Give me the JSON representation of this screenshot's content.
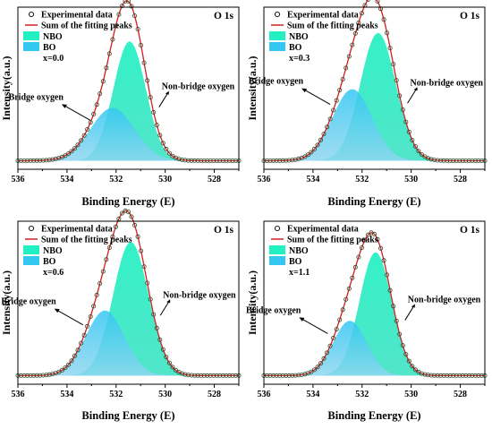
{
  "figure": {
    "legend_labels": {
      "experimental": "Experimental data",
      "fit_sum": "Sum of the fitting peaks",
      "nbo": "NBO",
      "bo": "BO"
    },
    "colors": {
      "nbo": "#22f0c2",
      "bo": "#33c7f2",
      "fit_line": "#d11f1f",
      "markers": "#2e4a2e"
    }
  },
  "chart_data": [
    {
      "type": "area",
      "title": "O 1s",
      "composition_label": "x=0.0",
      "xlabel": "Binding Energy (E)",
      "ylabel": "Intensity(a.u.)",
      "xlim": [
        536,
        527
      ],
      "x_reversed": true,
      "xticks": [
        "536",
        "534",
        "532",
        "530",
        "528"
      ],
      "annotations": [
        "Bridge oxygen",
        "Non-bridge oxygen"
      ],
      "baseline": 0.05,
      "peaks": [
        {
          "name": "NBO",
          "center": 531.45,
          "fwhm": 1.55,
          "height": 0.7
        },
        {
          "name": "BO",
          "center": 532.15,
          "fwhm": 2.1,
          "height": 0.31
        }
      ]
    },
    {
      "type": "area",
      "title": "O 1s",
      "composition_label": "x=0.3",
      "xlabel": "Binding Energy (E)",
      "ylabel": "Intensity(a.u.)",
      "xlim": [
        536,
        527
      ],
      "x_reversed": true,
      "xticks": [
        "536",
        "534",
        "532",
        "530",
        "528"
      ],
      "annotations": [
        "Bridge oxygen",
        "Non-bridge oxygen"
      ],
      "baseline": 0.05,
      "peaks": [
        {
          "name": "NBO",
          "center": 531.35,
          "fwhm": 1.7,
          "height": 0.75
        },
        {
          "name": "BO",
          "center": 532.4,
          "fwhm": 1.9,
          "height": 0.42
        }
      ]
    },
    {
      "type": "area",
      "title": "O 1s",
      "composition_label": "x=0.6",
      "xlabel": "Binding Energy (E)",
      "ylabel": "Intensity(a.u.)",
      "xlim": [
        536,
        527
      ],
      "x_reversed": true,
      "xticks": [
        "536",
        "534",
        "532",
        "530",
        "528"
      ],
      "annotations": [
        "Bridge oxygen",
        "Non-bridge oxygen"
      ],
      "baseline": 0.05,
      "peaks": [
        {
          "name": "NBO",
          "center": 531.4,
          "fwhm": 1.7,
          "height": 0.78
        },
        {
          "name": "BO",
          "center": 532.45,
          "fwhm": 1.85,
          "height": 0.38
        }
      ]
    },
    {
      "type": "area",
      "title": "O 1s",
      "composition_label": "x=1.1",
      "xlabel": "Binding Energy (E)",
      "ylabel": "Intensity(a.u.)",
      "xlim": [
        536,
        527
      ],
      "x_reversed": true,
      "xticks": [
        "536",
        "534",
        "532",
        "530",
        "528"
      ],
      "annotations": [
        "Bridge oxygen",
        "Non-bridge oxygen"
      ],
      "baseline": 0.05,
      "peaks": [
        {
          "name": "NBO",
          "center": 531.45,
          "fwhm": 1.55,
          "height": 0.72
        },
        {
          "name": "BO",
          "center": 532.5,
          "fwhm": 1.6,
          "height": 0.32
        }
      ]
    }
  ]
}
